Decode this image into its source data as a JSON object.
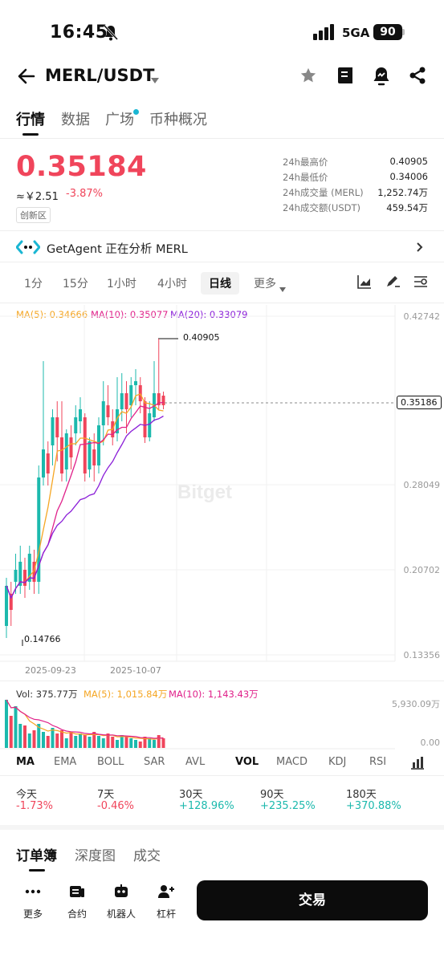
{
  "status": {
    "time": "16:45",
    "network": "5GA",
    "battery": "90"
  },
  "header": {
    "pair": "MERL/USDT"
  },
  "tabs": [
    "行情",
    "数据",
    "广场",
    "币种概况"
  ],
  "price": {
    "last": "0.35184",
    "cny": "≈￥2.51",
    "change": "-3.87%",
    "badge": "创新区",
    "stats": [
      {
        "label": "24h最高价",
        "value": "0.40905"
      },
      {
        "label": "24h最低价",
        "value": "0.34006"
      },
      {
        "label": "24h成交量 (MERL)",
        "value": "1,252.74万"
      },
      {
        "label": "24h成交额(USDT)",
        "value": "459.54万"
      }
    ]
  },
  "agent": {
    "text": "GetAgent 正在分析 MERL"
  },
  "intervals": [
    "1分",
    "15分",
    "1小时",
    "4小时",
    "日线",
    "更多"
  ],
  "chart": {
    "ma5": "MA(5): 0.34666",
    "ma10": "MA(10): 0.35077",
    "ma20": "MA(20): 0.33079",
    "y_ticks": [
      "0.42742",
      "0.35186",
      "0.28049",
      "0.20702",
      "0.13356"
    ],
    "high_marker": "0.40905",
    "low_marker": "0.14766",
    "current_price_tag": "0.35186",
    "dates": [
      "2025-09-23",
      "2025-10-07"
    ],
    "watermark": "Bitget",
    "vol": "Vol: 375.77万",
    "vol_ma5": "MA(5): 1,015.84万",
    "vol_ma10": "MA(10): 1,143.43万",
    "vol_max": "5,930.09万",
    "vol_min": "0.00",
    "colors": {
      "up": "#1cb9ad",
      "down": "#f0455b",
      "ma5": "#f5a623",
      "ma10": "#e0218a",
      "ma20": "#8b1fd8"
    }
  },
  "indicators": [
    "MA",
    "EMA",
    "BOLL",
    "SAR",
    "AVL",
    "VOL",
    "MACD",
    "KDJ",
    "RSI"
  ],
  "performance": [
    {
      "label": "今天",
      "value": "-1.73%"
    },
    {
      "label": "7天",
      "value": "-0.46%"
    },
    {
      "label": "30天",
      "value": "+128.96%"
    },
    {
      "label": "90天",
      "value": "+235.25%"
    },
    {
      "label": "180天",
      "value": "+370.88%"
    }
  ],
  "book_tabs": [
    "订单簿",
    "深度图",
    "成交"
  ],
  "bottom_bar": {
    "more": "更多",
    "contract": "合约",
    "robot": "机器人",
    "leverage": "杠杆",
    "trade": "交易"
  }
}
